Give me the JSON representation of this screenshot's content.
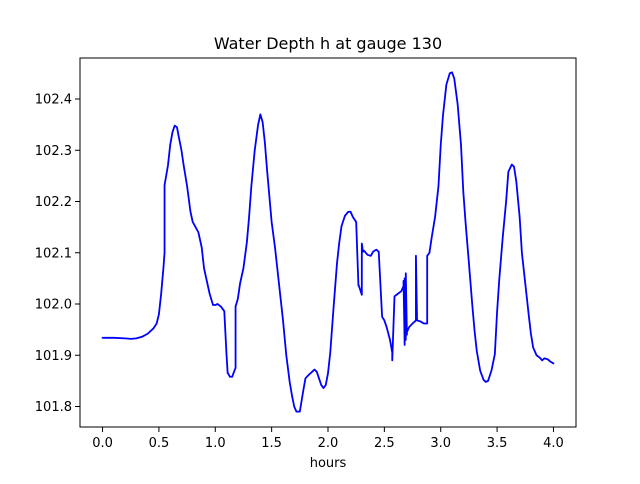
{
  "chart_data": {
    "type": "line",
    "title": "Water Depth h at gauge 130",
    "xlabel": "hours",
    "ylabel": "",
    "xlim": [
      -0.2,
      4.2
    ],
    "ylim": [
      101.76,
      102.48
    ],
    "xticks": [
      0.0,
      0.5,
      1.0,
      1.5,
      2.0,
      2.5,
      3.0,
      3.5,
      4.0
    ],
    "xtick_labels": [
      "0.0",
      "0.5",
      "1.0",
      "1.5",
      "2.0",
      "2.5",
      "3.0",
      "3.5",
      "4.0"
    ],
    "yticks": [
      101.8,
      101.9,
      102.0,
      102.1,
      102.2,
      102.3,
      102.4
    ],
    "ytick_labels": [
      "101.8",
      "101.9",
      "102.0",
      "102.1",
      "102.2",
      "102.3",
      "102.4"
    ],
    "grid": false,
    "legend": "none",
    "series": [
      {
        "color": "#0000ff",
        "x": [
          0.0,
          0.1,
          0.2,
          0.25,
          0.3,
          0.35,
          0.4,
          0.45,
          0.48,
          0.5,
          0.52,
          0.54,
          0.55,
          0.55,
          0.58,
          0.6,
          0.62,
          0.64,
          0.66,
          0.68,
          0.7,
          0.72,
          0.75,
          0.78,
          0.8,
          0.82,
          0.85,
          0.88,
          0.9,
          0.92,
          0.95,
          0.98,
          1.0,
          1.02,
          1.05,
          1.08,
          1.1,
          1.11,
          1.11,
          1.13,
          1.15,
          1.17,
          1.18,
          1.18,
          1.2,
          1.22,
          1.25,
          1.28,
          1.3,
          1.32,
          1.35,
          1.38,
          1.4,
          1.42,
          1.44,
          1.46,
          1.48,
          1.5,
          1.53,
          1.56,
          1.6,
          1.63,
          1.66,
          1.68,
          1.7,
          1.72,
          1.75,
          1.78,
          1.8,
          1.83,
          1.86,
          1.88,
          1.9,
          1.92,
          1.94,
          1.96,
          1.98,
          2.0,
          2.02,
          2.05,
          2.08,
          2.1,
          2.12,
          2.15,
          2.18,
          2.2,
          2.22,
          2.25,
          2.27,
          2.27,
          2.3,
          2.3,
          2.31,
          2.32,
          2.35,
          2.38,
          2.4,
          2.42,
          2.43,
          2.43,
          2.45,
          2.48,
          2.5,
          2.52,
          2.55,
          2.57,
          2.57,
          2.59,
          2.62,
          2.65,
          2.67,
          2.67,
          2.68,
          2.68,
          2.69,
          2.69,
          2.7,
          2.7,
          2.72,
          2.75,
          2.78,
          2.78,
          2.79,
          2.79,
          2.82,
          2.85,
          2.88,
          2.88,
          2.9,
          2.92,
          2.95,
          2.98,
          3.0,
          3.02,
          3.05,
          3.08,
          3.1,
          3.12,
          3.15,
          3.18,
          3.2,
          3.22,
          3.25,
          3.28,
          3.3,
          3.32,
          3.35,
          3.38,
          3.4,
          3.42,
          3.45,
          3.48,
          3.5,
          3.52,
          3.55,
          3.58,
          3.6,
          3.63,
          3.65,
          3.67,
          3.7,
          3.72,
          3.75,
          3.78,
          3.8,
          3.82,
          3.85,
          3.88,
          3.9,
          3.92,
          3.95,
          3.97,
          4.0
        ],
        "y": [
          101.934,
          101.934,
          101.933,
          101.932,
          101.933,
          101.936,
          101.942,
          101.952,
          101.962,
          101.98,
          102.02,
          102.07,
          102.1,
          102.232,
          102.27,
          102.31,
          102.335,
          102.348,
          102.345,
          102.322,
          102.3,
          102.27,
          102.23,
          102.18,
          102.16,
          102.152,
          102.14,
          102.11,
          102.07,
          102.05,
          102.02,
          101.998,
          101.998,
          102.0,
          101.995,
          101.986,
          101.9,
          101.865,
          101.866,
          101.858,
          101.858,
          101.87,
          101.875,
          101.995,
          102.01,
          102.04,
          102.07,
          102.12,
          102.17,
          102.23,
          102.3,
          102.35,
          102.37,
          102.355,
          102.315,
          102.26,
          102.21,
          102.16,
          102.11,
          102.05,
          101.97,
          101.9,
          101.848,
          101.822,
          101.8,
          101.79,
          101.79,
          101.83,
          101.855,
          101.862,
          101.868,
          101.872,
          101.868,
          101.855,
          101.842,
          101.836,
          101.842,
          101.865,
          101.905,
          101.995,
          102.08,
          102.12,
          102.152,
          102.172,
          102.18,
          102.18,
          102.17,
          102.16,
          102.036,
          102.038,
          102.018,
          102.118,
          102.102,
          102.104,
          102.096,
          102.094,
          102.102,
          102.105,
          102.106,
          102.106,
          102.102,
          101.975,
          101.968,
          101.955,
          101.93,
          101.905,
          101.89,
          102.015,
          102.02,
          102.025,
          102.035,
          102.045,
          101.92,
          102.05,
          101.93,
          102.06,
          101.94,
          101.945,
          101.955,
          101.962,
          101.968,
          102.094,
          101.968,
          101.968,
          101.966,
          101.962,
          101.962,
          102.094,
          102.1,
          102.13,
          102.17,
          102.23,
          102.31,
          102.368,
          102.428,
          102.45,
          102.452,
          102.44,
          102.39,
          102.31,
          102.22,
          102.16,
          102.08,
          101.998,
          101.948,
          101.908,
          101.87,
          101.852,
          101.848,
          101.85,
          101.87,
          101.902,
          101.985,
          102.05,
          102.13,
          102.2,
          102.258,
          102.272,
          102.268,
          102.24,
          102.17,
          102.1,
          102.04,
          101.98,
          101.942,
          101.915,
          101.9,
          101.895,
          101.89,
          101.894,
          101.892,
          101.888,
          101.884
        ]
      }
    ]
  }
}
